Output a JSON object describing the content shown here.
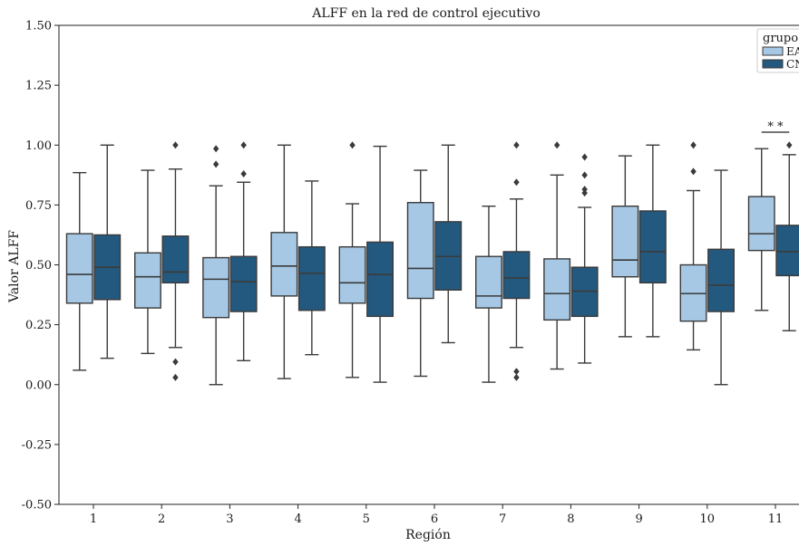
{
  "chart_data": {
    "type": "box",
    "title": "ALFF en la red de control ejecutivo",
    "xlabel": "Región",
    "ylabel": "Valor ALFF",
    "ylim": [
      -0.5,
      1.5
    ],
    "yticks": [
      "1.50",
      "1.25",
      "1.00",
      "0.75",
      "0.50",
      "0.25",
      "0.00",
      "-0.25",
      "-0.50"
    ],
    "ytick_values": [
      1.5,
      1.25,
      1.0,
      0.75,
      0.5,
      0.25,
      0.0,
      -0.25,
      -0.5
    ],
    "categories": [
      "1",
      "2",
      "3",
      "4",
      "5",
      "6",
      "7",
      "8",
      "9",
      "10",
      "11"
    ],
    "legend": {
      "title": "grupo",
      "position": "top-right",
      "entries": [
        "EA",
        "CN"
      ]
    },
    "colors": {
      "EA": "#a6c8e4",
      "CN": "#24597f",
      "stroke": "#3a3a3a"
    },
    "annotations": [
      {
        "category": "11",
        "text": "* *"
      }
    ],
    "series": [
      {
        "name": "EA",
        "boxes": [
          {
            "min": 0.06,
            "q1": 0.34,
            "median": 0.46,
            "q3": 0.63,
            "max": 0.885,
            "outliers": []
          },
          {
            "min": 0.13,
            "q1": 0.32,
            "median": 0.45,
            "q3": 0.55,
            "max": 0.895,
            "outliers": []
          },
          {
            "min": 0.0,
            "q1": 0.28,
            "median": 0.44,
            "q3": 0.53,
            "max": 0.83,
            "outliers": [
              0.92,
              0.985
            ]
          },
          {
            "min": 0.025,
            "q1": 0.37,
            "median": 0.495,
            "q3": 0.635,
            "max": 1.0,
            "outliers": []
          },
          {
            "min": 0.03,
            "q1": 0.34,
            "median": 0.425,
            "q3": 0.575,
            "max": 0.755,
            "outliers": [
              1.0
            ]
          },
          {
            "min": 0.035,
            "q1": 0.36,
            "median": 0.485,
            "q3": 0.76,
            "max": 0.895,
            "outliers": []
          },
          {
            "min": 0.01,
            "q1": 0.32,
            "median": 0.37,
            "q3": 0.535,
            "max": 0.745,
            "outliers": []
          },
          {
            "min": 0.065,
            "q1": 0.27,
            "median": 0.38,
            "q3": 0.525,
            "max": 0.875,
            "outliers": [
              1.0
            ]
          },
          {
            "min": 0.2,
            "q1": 0.45,
            "median": 0.52,
            "q3": 0.745,
            "max": 0.955,
            "outliers": []
          },
          {
            "min": 0.145,
            "q1": 0.265,
            "median": 0.38,
            "q3": 0.5,
            "max": 0.81,
            "outliers": [
              0.89,
              1.0
            ]
          },
          {
            "min": 0.31,
            "q1": 0.56,
            "median": 0.63,
            "q3": 0.785,
            "max": 0.985,
            "outliers": []
          }
        ]
      },
      {
        "name": "CN",
        "boxes": [
          {
            "min": 0.11,
            "q1": 0.355,
            "median": 0.49,
            "q3": 0.625,
            "max": 1.0,
            "outliers": []
          },
          {
            "min": 0.155,
            "q1": 0.425,
            "median": 0.47,
            "q3": 0.62,
            "max": 0.9,
            "outliers": [
              0.03,
              0.095,
              1.0
            ]
          },
          {
            "min": 0.1,
            "q1": 0.305,
            "median": 0.43,
            "q3": 0.535,
            "max": 0.845,
            "outliers": [
              0.88,
              1.0
            ]
          },
          {
            "min": 0.125,
            "q1": 0.31,
            "median": 0.465,
            "q3": 0.575,
            "max": 0.85,
            "outliers": []
          },
          {
            "min": 0.01,
            "q1": 0.285,
            "median": 0.46,
            "q3": 0.595,
            "max": 0.995,
            "outliers": []
          },
          {
            "min": 0.175,
            "q1": 0.395,
            "median": 0.535,
            "q3": 0.68,
            "max": 1.0,
            "outliers": []
          },
          {
            "min": 0.155,
            "q1": 0.36,
            "median": 0.445,
            "q3": 0.555,
            "max": 0.775,
            "outliers": [
              0.03,
              0.055,
              0.845,
              1.0
            ]
          },
          {
            "min": 0.09,
            "q1": 0.285,
            "median": 0.39,
            "q3": 0.49,
            "max": 0.74,
            "outliers": [
              0.8,
              0.815,
              0.875,
              0.95
            ]
          },
          {
            "min": 0.2,
            "q1": 0.425,
            "median": 0.555,
            "q3": 0.725,
            "max": 1.0,
            "outliers": []
          },
          {
            "min": 0.0,
            "q1": 0.305,
            "median": 0.415,
            "q3": 0.565,
            "max": 0.895,
            "outliers": []
          },
          {
            "min": 0.225,
            "q1": 0.455,
            "median": 0.555,
            "q3": 0.665,
            "max": 0.96,
            "outliers": [
              1.0
            ]
          }
        ]
      }
    ]
  }
}
